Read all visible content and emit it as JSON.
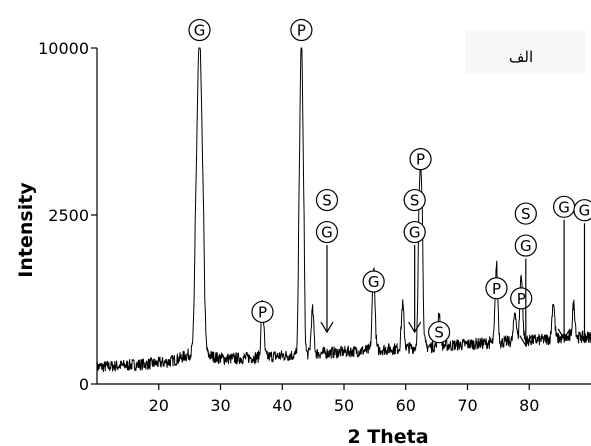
{
  "chart_data": {
    "type": "line",
    "panel_label": "الف",
    "xlabel": "2 Theta",
    "ylabel": "Intensity",
    "xlim": [
      10,
      90
    ],
    "y_ticks": [
      {
        "label": "0",
        "value": 0
      },
      {
        "label": "2500",
        "value": 2500
      },
      {
        "label": "10000",
        "value": 10000
      }
    ],
    "x_ticks": [
      20,
      30,
      40,
      50,
      60,
      70,
      80
    ],
    "baseline_start": 250,
    "baseline_end": 700,
    "peaks": [
      {
        "x": 26.6,
        "y": 10000,
        "width": 0.55
      },
      {
        "x": 36.8,
        "y": 800,
        "width": 0.3
      },
      {
        "x": 43.1,
        "y": 10000,
        "width": 0.35
      },
      {
        "x": 44.9,
        "y": 650,
        "width": 0.3
      },
      {
        "x": 54.8,
        "y": 1250,
        "width": 0.3
      },
      {
        "x": 59.5,
        "y": 650,
        "width": 0.3
      },
      {
        "x": 62.4,
        "y": 4200,
        "width": 0.35
      },
      {
        "x": 65.4,
        "y": 500,
        "width": 0.3
      },
      {
        "x": 74.7,
        "y": 1150,
        "width": 0.3
      },
      {
        "x": 77.7,
        "y": 450,
        "width": 0.3
      },
      {
        "x": 78.7,
        "y": 1000,
        "width": 0.3
      },
      {
        "x": 83.9,
        "y": 550,
        "width": 0.3
      },
      {
        "x": 87.2,
        "y": 500,
        "width": 0.3
      }
    ],
    "markers": [
      {
        "label": "G",
        "x": 26.6,
        "y": 10000,
        "arrow": false
      },
      {
        "label": "P",
        "x": 36.8,
        "y": 800,
        "arrow": false
      },
      {
        "label": "P",
        "x": 43.1,
        "y": 10000,
        "arrow": false
      },
      {
        "label": "S",
        "x": 45.3,
        "y": 650,
        "arrow": true
      },
      {
        "label": "G",
        "x": 45.3,
        "y": 650,
        "arrow": true
      },
      {
        "label": "G",
        "x": 54.8,
        "y": 1250,
        "arrow": false
      },
      {
        "label": "S",
        "x": 59.5,
        "y": 650,
        "arrow": true
      },
      {
        "label": "G",
        "x": 59.5,
        "y": 650,
        "arrow": true
      },
      {
        "label": "P",
        "x": 62.4,
        "y": 4200,
        "arrow": false
      },
      {
        "label": "S",
        "x": 65.4,
        "y": 500,
        "arrow": false
      },
      {
        "label": "P",
        "x": 74.7,
        "y": 1150,
        "arrow": false
      },
      {
        "label": "S",
        "x": 77.5,
        "y": 450,
        "arrow": true
      },
      {
        "label": "G",
        "x": 77.5,
        "y": 450,
        "arrow": true
      },
      {
        "label": "P",
        "x": 78.7,
        "y": 1000,
        "arrow": false
      },
      {
        "label": "G",
        "x": 83.7,
        "y": 550,
        "arrow": true
      },
      {
        "label": "G",
        "x": 87.0,
        "y": 500,
        "arrow": true
      }
    ],
    "line_color": "#000000"
  }
}
